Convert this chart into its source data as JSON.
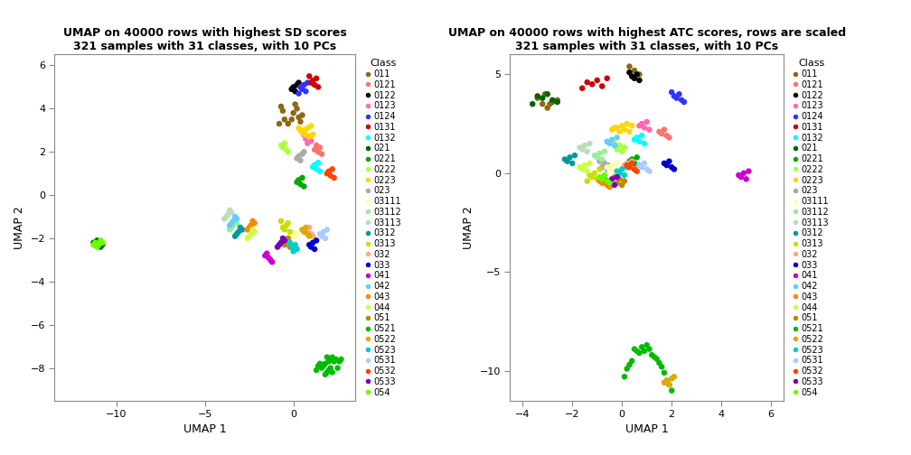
{
  "title1": "UMAP on 40000 rows with highest SD scores\n321 samples with 31 classes, with 10 PCs",
  "title2": "UMAP on 40000 rows with highest ATC scores, rows are scaled\n321 samples with 31 classes, with 10 PCs",
  "xlabel": "UMAP 1",
  "ylabel": "UMAP 2",
  "classes": [
    "011",
    "0121",
    "0122",
    "0123",
    "0124",
    "0131",
    "0132",
    "021",
    "0221",
    "0222",
    "0223",
    "023",
    "03111",
    "03112",
    "03113",
    "0312",
    "0313",
    "032",
    "033",
    "041",
    "042",
    "043",
    "044",
    "051",
    "0521",
    "0522",
    "0523",
    "0531",
    "0532",
    "0533",
    "054"
  ],
  "class_colors": {
    "011": "#8B6914",
    "0121": "#F8766D",
    "0122": "#000000",
    "0123": "#FF69B4",
    "0124": "#3333FF",
    "0131": "#CC0000",
    "0132": "#00FFFF",
    "021": "#006400",
    "0221": "#00AA00",
    "0222": "#AAFF44",
    "0223": "#FFD700",
    "023": "#AAAAAA",
    "03111": "#FFFFAA",
    "03112": "#99EE99",
    "03113": "#BBDDBB",
    "0312": "#009999",
    "0313": "#CCDD00",
    "032": "#FFAA88",
    "033": "#0000CC",
    "041": "#CC00CC",
    "042": "#66CCFF",
    "043": "#FF8800",
    "044": "#CCFF44",
    "051": "#BB8800",
    "0521": "#00BB00",
    "0522": "#DDAA00",
    "0523": "#00CCCC",
    "0531": "#AACCFF",
    "0532": "#FF4400",
    "0533": "#7700BB",
    "054": "#66FF00"
  },
  "xlim1": [
    -13.5,
    3.5
  ],
  "ylim1": [
    -9.5,
    6.5
  ],
  "xlim2": [
    -4.5,
    6.5
  ],
  "ylim2": [
    -11.5,
    6.0
  ],
  "xticks1": [
    -10,
    -5,
    0
  ],
  "yticks1": [
    -8,
    -6,
    -4,
    -2,
    0,
    2,
    4,
    6
  ],
  "xticks2": [
    -4,
    -2,
    0,
    2,
    4,
    6
  ],
  "yticks2": [
    -10,
    -5,
    0,
    5
  ],
  "plot1": {
    "011": [
      [
        -0.8,
        3.3
      ],
      [
        -0.5,
        3.5
      ],
      [
        -0.3,
        3.3
      ],
      [
        -0.1,
        3.5
      ],
      [
        0.0,
        3.8
      ],
      [
        0.1,
        4.2
      ],
      [
        0.2,
        4.0
      ],
      [
        0.3,
        3.6
      ],
      [
        0.4,
        3.4
      ],
      [
        -0.6,
        3.9
      ],
      [
        -0.7,
        4.1
      ],
      [
        0.5,
        3.7
      ]
    ],
    "0121": [
      [
        1.3,
        2.3
      ],
      [
        1.4,
        2.0
      ],
      [
        1.5,
        2.2
      ],
      [
        1.2,
        2.1
      ],
      [
        1.6,
        1.9
      ]
    ],
    "0122": [
      [
        0.1,
        4.8
      ],
      [
        0.2,
        5.1
      ],
      [
        0.0,
        5.0
      ],
      [
        -0.1,
        4.9
      ],
      [
        0.3,
        5.2
      ]
    ],
    "0123": [
      [
        0.7,
        2.6
      ],
      [
        0.8,
        2.4
      ],
      [
        0.9,
        2.7
      ],
      [
        1.0,
        2.5
      ],
      [
        0.6,
        2.8
      ]
    ],
    "0124": [
      [
        0.5,
        4.9
      ],
      [
        0.6,
        5.1
      ],
      [
        0.7,
        4.8
      ],
      [
        0.4,
        5.0
      ],
      [
        0.8,
        5.2
      ],
      [
        0.3,
        4.7
      ]
    ],
    "0131": [
      [
        1.1,
        5.3
      ],
      [
        1.2,
        5.1
      ],
      [
        1.3,
        5.4
      ],
      [
        1.0,
        5.2
      ],
      [
        1.4,
        5.0
      ],
      [
        0.9,
        5.5
      ]
    ],
    "0132": [
      [
        1.2,
        1.4
      ],
      [
        1.3,
        1.2
      ],
      [
        1.4,
        1.5
      ],
      [
        1.1,
        1.3
      ],
      [
        1.5,
        1.1
      ]
    ],
    "021": [
      [
        -11.2,
        -2.3
      ],
      [
        -11.0,
        -2.2
      ],
      [
        -10.9,
        -2.4
      ],
      [
        -11.1,
        -2.1
      ],
      [
        -10.8,
        -2.3
      ],
      [
        -11.3,
        -2.2
      ]
    ],
    "0221": [
      [
        0.3,
        0.7
      ],
      [
        0.4,
        0.5
      ],
      [
        0.5,
        0.8
      ],
      [
        0.2,
        0.6
      ],
      [
        0.6,
        0.4
      ]
    ],
    "0222": [
      [
        -0.6,
        2.2
      ],
      [
        -0.5,
        2.4
      ],
      [
        -0.4,
        2.1
      ],
      [
        -0.7,
        2.3
      ],
      [
        -0.3,
        2.0
      ]
    ],
    "0223": [
      [
        0.6,
        3.0
      ],
      [
        0.7,
        2.8
      ],
      [
        0.8,
        3.1
      ],
      [
        0.5,
        2.9
      ],
      [
        0.9,
        2.7
      ],
      [
        1.0,
        3.2
      ],
      [
        0.4,
        3.0
      ],
      [
        1.1,
        2.8
      ],
      [
        0.3,
        3.1
      ]
    ],
    "023": [
      [
        0.3,
        1.8
      ],
      [
        0.4,
        1.6
      ],
      [
        0.5,
        1.9
      ],
      [
        0.2,
        1.7
      ],
      [
        0.6,
        2.0
      ]
    ],
    "03111": [
      [
        -0.1,
        -1.9
      ],
      [
        0.0,
        -1.7
      ],
      [
        0.1,
        -2.0
      ],
      [
        0.2,
        -1.8
      ],
      [
        -0.2,
        -2.1
      ]
    ],
    "03112": [
      [
        -3.4,
        -1.4
      ],
      [
        -3.3,
        -1.2
      ],
      [
        -3.5,
        -1.5
      ],
      [
        -3.2,
        -1.3
      ],
      [
        -3.6,
        -1.6
      ]
    ],
    "03113": [
      [
        -3.7,
        -0.9
      ],
      [
        -3.6,
        -0.7
      ],
      [
        -3.8,
        -1.0
      ],
      [
        -3.5,
        -0.8
      ],
      [
        -3.9,
        -1.1
      ]
    ],
    "0312": [
      [
        -3.1,
        -1.7
      ],
      [
        -3.0,
        -1.5
      ],
      [
        -3.2,
        -1.8
      ],
      [
        -2.9,
        -1.6
      ],
      [
        -3.3,
        -1.9
      ]
    ],
    "0313": [
      [
        -0.4,
        -1.4
      ],
      [
        -0.5,
        -1.6
      ],
      [
        -0.3,
        -1.3
      ],
      [
        -0.6,
        -1.5
      ],
      [
        -0.2,
        -1.7
      ],
      [
        -0.7,
        -1.2
      ]
    ],
    "032": [
      [
        0.8,
        -1.7
      ],
      [
        0.9,
        -1.5
      ],
      [
        1.0,
        -1.8
      ],
      [
        0.7,
        -1.6
      ],
      [
        1.1,
        -1.9
      ]
    ],
    "033": [
      [
        1.0,
        -2.4
      ],
      [
        1.1,
        -2.2
      ],
      [
        1.2,
        -2.5
      ],
      [
        0.9,
        -2.3
      ],
      [
        1.3,
        -2.1
      ]
    ],
    "041": [
      [
        -1.4,
        -2.9
      ],
      [
        -1.5,
        -2.7
      ],
      [
        -1.3,
        -3.0
      ],
      [
        -1.6,
        -2.8
      ],
      [
        -1.2,
        -3.1
      ]
    ],
    "042": [
      [
        -3.4,
        -1.2
      ],
      [
        -3.3,
        -1.0
      ],
      [
        -3.5,
        -1.3
      ],
      [
        -3.2,
        -1.1
      ],
      [
        -3.6,
        -1.4
      ]
    ],
    "043": [
      [
        -2.4,
        -1.4
      ],
      [
        -2.3,
        -1.2
      ],
      [
        -2.5,
        -1.5
      ],
      [
        -2.2,
        -1.3
      ],
      [
        -2.6,
        -1.6
      ]
    ],
    "044": [
      [
        -2.4,
        -1.8
      ],
      [
        -2.3,
        -1.6
      ],
      [
        -2.5,
        -1.9
      ],
      [
        -2.2,
        -1.7
      ],
      [
        -2.6,
        -2.0
      ]
    ],
    "051": [
      [
        -0.4,
        -2.1
      ],
      [
        -0.5,
        -2.3
      ],
      [
        -0.3,
        -2.0
      ],
      [
        -0.6,
        -2.2
      ],
      [
        -0.2,
        -2.4
      ]
    ],
    "0521": [
      [
        1.9,
        -7.5
      ],
      [
        2.0,
        -7.7
      ],
      [
        1.8,
        -7.8
      ],
      [
        2.1,
        -7.6
      ],
      [
        1.7,
        -7.9
      ],
      [
        2.2,
        -7.5
      ],
      [
        1.6,
        -8.0
      ],
      [
        2.3,
        -7.7
      ],
      [
        1.5,
        -7.8
      ],
      [
        2.4,
        -7.6
      ],
      [
        1.4,
        -7.9
      ],
      [
        2.5,
        -8.0
      ],
      [
        2.6,
        -7.7
      ],
      [
        1.3,
        -8.1
      ],
      [
        2.7,
        -7.6
      ],
      [
        2.0,
        -8.1
      ],
      [
        1.9,
        -8.2
      ],
      [
        2.1,
        -8.0
      ],
      [
        2.2,
        -8.2
      ],
      [
        1.8,
        -8.3
      ]
    ],
    "0522": [
      [
        0.6,
        -1.7
      ],
      [
        0.7,
        -1.5
      ],
      [
        0.8,
        -1.8
      ],
      [
        0.5,
        -1.6
      ],
      [
        0.9,
        -1.9
      ]
    ],
    "0523": [
      [
        -0.1,
        -2.4
      ],
      [
        0.0,
        -2.6
      ],
      [
        0.1,
        -2.3
      ],
      [
        0.2,
        -2.5
      ],
      [
        -0.2,
        -2.2
      ]
    ],
    "0531": [
      [
        1.6,
        -1.9
      ],
      [
        1.7,
        -1.7
      ],
      [
        1.8,
        -2.0
      ],
      [
        1.5,
        -1.8
      ],
      [
        1.9,
        -1.6
      ]
    ],
    "0532": [
      [
        2.0,
        1.1
      ],
      [
        2.1,
        0.9
      ],
      [
        2.2,
        1.2
      ],
      [
        1.9,
        1.0
      ],
      [
        2.3,
        0.8
      ]
    ],
    "0533": [
      [
        -0.7,
        -2.2
      ],
      [
        -0.6,
        -2.0
      ],
      [
        -0.8,
        -2.3
      ],
      [
        -0.5,
        -2.1
      ],
      [
        -0.9,
        -2.4
      ]
    ],
    "054": [
      [
        -11.2,
        -2.2
      ],
      [
        -11.0,
        -2.3
      ],
      [
        -10.9,
        -2.1
      ],
      [
        -11.1,
        -2.4
      ],
      [
        -11.3,
        -2.3
      ],
      [
        -10.8,
        -2.2
      ]
    ]
  },
  "plot2": {
    "011": [
      [
        -3.2,
        3.5
      ],
      [
        -3.0,
        3.3
      ],
      [
        -2.8,
        3.6
      ],
      [
        -3.4,
        3.8
      ],
      [
        -3.1,
        4.0
      ],
      [
        -2.6,
        3.7
      ],
      [
        -2.9,
        3.5
      ],
      [
        0.5,
        5.2
      ],
      [
        0.7,
        5.0
      ],
      [
        0.3,
        5.4
      ]
    ],
    "0121": [
      [
        1.6,
        2.0
      ],
      [
        1.7,
        2.2
      ],
      [
        1.8,
        1.9
      ],
      [
        1.5,
        2.1
      ],
      [
        1.9,
        1.8
      ]
    ],
    "0122": [
      [
        0.5,
        4.8
      ],
      [
        0.6,
        5.0
      ],
      [
        0.7,
        4.7
      ],
      [
        0.4,
        4.9
      ],
      [
        0.3,
        5.1
      ]
    ],
    "0123": [
      [
        0.8,
        2.5
      ],
      [
        0.9,
        2.3
      ],
      [
        1.0,
        2.6
      ],
      [
        0.7,
        2.4
      ],
      [
        1.1,
        2.2
      ]
    ],
    "0124": [
      [
        2.2,
        3.8
      ],
      [
        2.3,
        4.0
      ],
      [
        2.4,
        3.7
      ],
      [
        2.1,
        3.9
      ],
      [
        2.5,
        3.6
      ],
      [
        2.0,
        4.1
      ]
    ],
    "0131": [
      [
        -1.2,
        4.5
      ],
      [
        -1.0,
        4.7
      ],
      [
        -0.8,
        4.4
      ],
      [
        -1.4,
        4.6
      ],
      [
        -0.6,
        4.8
      ],
      [
        -1.6,
        4.3
      ]
    ],
    "0132": [
      [
        0.6,
        1.8
      ],
      [
        0.7,
        1.6
      ],
      [
        0.8,
        1.9
      ],
      [
        0.5,
        1.7
      ],
      [
        0.9,
        1.5
      ]
    ],
    "021": [
      [
        -3.2,
        3.8
      ],
      [
        -3.0,
        4.0
      ],
      [
        -2.8,
        3.7
      ],
      [
        -3.4,
        3.9
      ],
      [
        -2.6,
        3.6
      ],
      [
        -3.6,
        3.5
      ]
    ],
    "0221": [
      [
        0.4,
        0.7
      ],
      [
        0.5,
        0.5
      ],
      [
        0.6,
        0.8
      ],
      [
        0.3,
        0.6
      ],
      [
        0.7,
        0.4
      ]
    ],
    "0222": [
      [
        -0.2,
        1.2
      ],
      [
        -0.1,
        1.4
      ],
      [
        0.0,
        1.1
      ],
      [
        0.1,
        1.3
      ],
      [
        -0.3,
        1.5
      ]
    ],
    "0223": [
      [
        -0.2,
        2.3
      ],
      [
        -0.1,
        2.1
      ],
      [
        0.0,
        2.4
      ],
      [
        0.1,
        2.2
      ],
      [
        0.2,
        2.5
      ],
      [
        -0.3,
        2.3
      ],
      [
        0.3,
        2.1
      ],
      [
        0.4,
        2.4
      ],
      [
        -0.4,
        2.2
      ]
    ],
    "023": [
      [
        -0.8,
        0.3
      ],
      [
        -0.7,
        0.5
      ],
      [
        -0.6,
        0.2
      ],
      [
        -0.5,
        0.4
      ],
      [
        -0.9,
        0.6
      ]
    ],
    "03111": [
      [
        -0.5,
        0.2
      ],
      [
        -0.4,
        0.4
      ],
      [
        -0.3,
        0.1
      ],
      [
        -0.6,
        0.3
      ],
      [
        -0.2,
        0.5
      ]
    ],
    "03112": [
      [
        -1.0,
        0.8
      ],
      [
        -0.9,
        1.0
      ],
      [
        -0.8,
        0.7
      ],
      [
        -1.1,
        0.9
      ],
      [
        -0.7,
        1.1
      ]
    ],
    "03113": [
      [
        -1.6,
        1.2
      ],
      [
        -1.5,
        1.4
      ],
      [
        -1.4,
        1.1
      ],
      [
        -1.7,
        1.3
      ],
      [
        -1.3,
        1.5
      ]
    ],
    "0312": [
      [
        -2.2,
        0.6
      ],
      [
        -2.1,
        0.8
      ],
      [
        -2.0,
        0.5
      ],
      [
        -2.3,
        0.7
      ],
      [
        -1.9,
        0.9
      ]
    ],
    "0313": [
      [
        -1.2,
        -0.2
      ],
      [
        -1.1,
        0.0
      ],
      [
        -1.0,
        -0.3
      ],
      [
        -1.3,
        -0.1
      ],
      [
        -0.9,
        0.2
      ],
      [
        -1.4,
        -0.4
      ]
    ],
    "032": [
      [
        0.2,
        0.5
      ],
      [
        0.3,
        0.3
      ],
      [
        0.4,
        0.6
      ],
      [
        0.1,
        0.4
      ],
      [
        0.5,
        0.2
      ]
    ],
    "033": [
      [
        1.8,
        0.4
      ],
      [
        1.9,
        0.6
      ],
      [
        2.0,
        0.3
      ],
      [
        1.7,
        0.5
      ],
      [
        2.1,
        0.2
      ]
    ],
    "041": [
      [
        4.8,
        -0.2
      ],
      [
        4.9,
        0.0
      ],
      [
        5.0,
        -0.3
      ],
      [
        4.7,
        -0.1
      ],
      [
        5.1,
        0.1
      ]
    ],
    "042": [
      [
        -0.5,
        1.5
      ],
      [
        -0.4,
        1.7
      ],
      [
        -0.3,
        1.4
      ],
      [
        -0.6,
        1.6
      ],
      [
        -0.2,
        1.8
      ]
    ],
    "043": [
      [
        -0.8,
        -0.5
      ],
      [
        -0.7,
        -0.3
      ],
      [
        -0.6,
        -0.6
      ],
      [
        -0.9,
        -0.4
      ],
      [
        -0.5,
        -0.7
      ]
    ],
    "044": [
      [
        -1.6,
        0.2
      ],
      [
        -1.5,
        0.4
      ],
      [
        -1.4,
        0.1
      ],
      [
        -1.7,
        0.3
      ],
      [
        -1.3,
        0.5
      ]
    ],
    "051": [
      [
        -0.2,
        -0.5
      ],
      [
        -0.1,
        -0.3
      ],
      [
        0.0,
        -0.6
      ],
      [
        0.1,
        -0.4
      ],
      [
        -0.3,
        -0.2
      ]
    ],
    "0521": [
      [
        0.8,
        -8.8
      ],
      [
        0.9,
        -9.0
      ],
      [
        1.0,
        -8.7
      ],
      [
        1.1,
        -8.9
      ],
      [
        0.7,
        -9.1
      ],
      [
        1.2,
        -9.2
      ],
      [
        0.6,
        -9.0
      ],
      [
        1.3,
        -9.3
      ],
      [
        0.5,
        -8.9
      ],
      [
        1.4,
        -9.4
      ],
      [
        0.4,
        -9.5
      ],
      [
        1.5,
        -9.6
      ],
      [
        0.3,
        -9.7
      ],
      [
        1.6,
        -9.8
      ],
      [
        0.2,
        -9.9
      ],
      [
        1.7,
        -10.1
      ],
      [
        0.1,
        -10.3
      ],
      [
        1.8,
        -10.5
      ],
      [
        1.9,
        -10.7
      ],
      [
        2.0,
        -11.0
      ]
    ],
    "0522": [
      [
        1.8,
        -10.5
      ],
      [
        1.9,
        -10.7
      ],
      [
        2.0,
        -10.4
      ],
      [
        1.7,
        -10.6
      ],
      [
        2.1,
        -10.3
      ]
    ],
    "0523": [
      [
        -0.1,
        0.0
      ],
      [
        0.0,
        0.2
      ],
      [
        0.1,
        -0.1
      ],
      [
        -0.2,
        0.1
      ],
      [
        0.2,
        0.3
      ]
    ],
    "0531": [
      [
        0.8,
        0.3
      ],
      [
        0.9,
        0.5
      ],
      [
        1.0,
        0.2
      ],
      [
        0.7,
        0.4
      ],
      [
        1.1,
        0.1
      ]
    ],
    "0532": [
      [
        0.3,
        0.3
      ],
      [
        0.4,
        0.5
      ],
      [
        0.5,
        0.2
      ],
      [
        0.2,
        0.4
      ],
      [
        0.6,
        0.1
      ]
    ],
    "0533": [
      [
        -0.5,
        -0.5
      ],
      [
        -0.4,
        -0.3
      ],
      [
        -0.3,
        -0.6
      ],
      [
        -0.6,
        -0.4
      ],
      [
        -0.2,
        -0.2
      ]
    ],
    "054": [
      [
        -0.8,
        -0.3
      ],
      [
        -0.7,
        -0.1
      ],
      [
        -0.6,
        -0.4
      ],
      [
        -0.9,
        -0.2
      ],
      [
        -0.5,
        -0.5
      ]
    ]
  }
}
